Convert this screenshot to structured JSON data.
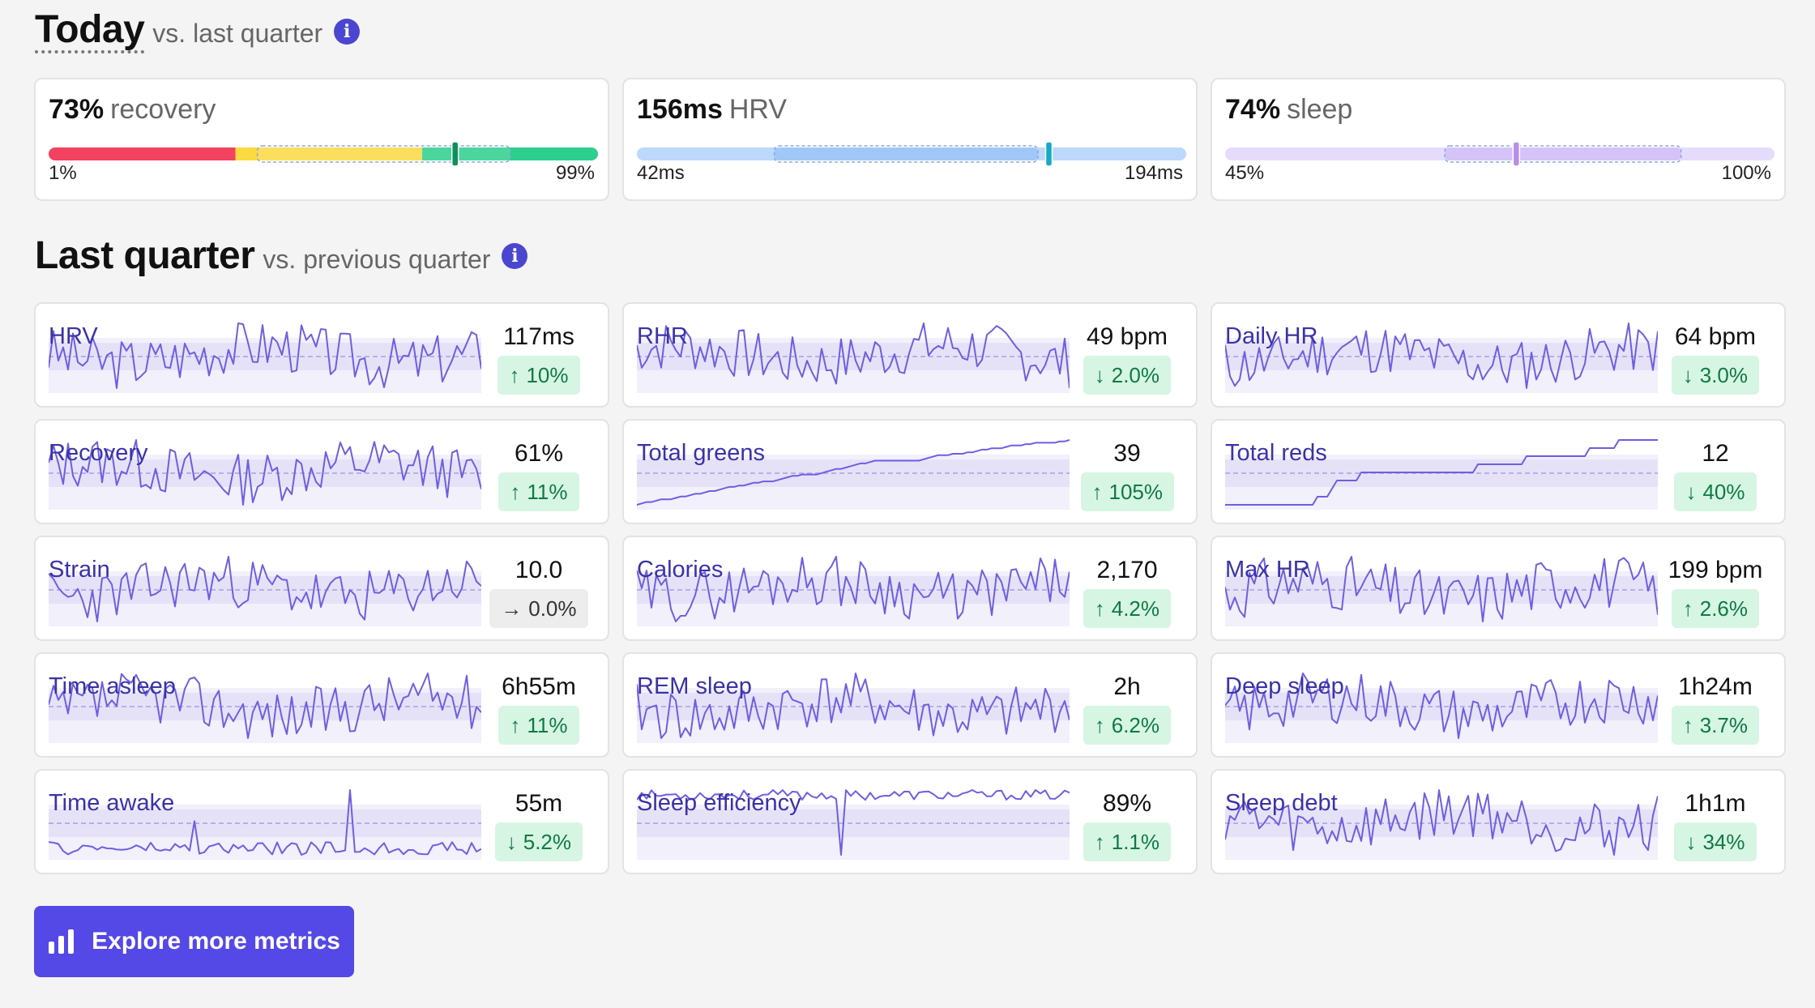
{
  "today": {
    "title": "Today",
    "subtitle": "vs. last quarter",
    "cards": [
      {
        "value": "73%",
        "unit": "recovery",
        "min": "1%",
        "max": "99%",
        "kind": "recovery",
        "marker": 0.74,
        "range": [
          0.38,
          0.84
        ]
      },
      {
        "value": "156ms",
        "unit": "HRV",
        "min": "42ms",
        "max": "194ms",
        "kind": "hrv",
        "marker": 0.75,
        "range": [
          0.25,
          0.73
        ],
        "color": "#bcd8fb",
        "rangeColor": "#8fbef6",
        "markerColor": "#15a9c7"
      },
      {
        "value": "74%",
        "unit": "sleep",
        "min": "45%",
        "max": "100%",
        "kind": "sleep",
        "marker": 0.53,
        "range": [
          0.4,
          0.83
        ],
        "color": "#e5dcfb",
        "rangeColor": "#cdb9f6",
        "markerColor": "#b68ee8"
      }
    ]
  },
  "quarter": {
    "title": "Last quarter",
    "subtitle": "vs. previous quarter",
    "metrics": [
      {
        "label": "HRV",
        "value": "117ms",
        "change": "10%",
        "dir": "up",
        "style": "noisy",
        "seed": 3
      },
      {
        "label": "RHR",
        "value": "49 bpm",
        "change": "2.0%",
        "dir": "down",
        "style": "noisy",
        "seed": 7
      },
      {
        "label": "Daily HR",
        "value": "64 bpm",
        "change": "3.0%",
        "dir": "down",
        "style": "noisy",
        "seed": 11
      },
      {
        "label": "Recovery",
        "value": "61%",
        "change": "11%",
        "dir": "up",
        "style": "noisy",
        "seed": 13
      },
      {
        "label": "Total greens",
        "value": "39",
        "change": "105%",
        "dir": "up",
        "style": "cumulative",
        "seed": 17
      },
      {
        "label": "Total reds",
        "value": "12",
        "change": "40%",
        "dir": "down",
        "style": "steps",
        "seed": 19
      },
      {
        "label": "Strain",
        "value": "10.0",
        "change": "0.0%",
        "dir": "flat",
        "style": "noisy",
        "seed": 23
      },
      {
        "label": "Calories",
        "value": "2,170",
        "change": "4.2%",
        "dir": "up",
        "style": "noisy",
        "seed": 29
      },
      {
        "label": "Max HR",
        "value": "199 bpm",
        "change": "2.6%",
        "dir": "up",
        "style": "noisy",
        "seed": 31
      },
      {
        "label": "Time asleep",
        "value": "6h55m",
        "change": "11%",
        "dir": "up",
        "style": "noisy",
        "seed": 37
      },
      {
        "label": "REM sleep",
        "value": "2h",
        "change": "6.2%",
        "dir": "up",
        "style": "noisy",
        "seed": 41
      },
      {
        "label": "Deep sleep",
        "value": "1h24m",
        "change": "3.7%",
        "dir": "up",
        "style": "noisy",
        "seed": 43
      },
      {
        "label": "Time awake",
        "value": "55m",
        "change": "5.2%",
        "dir": "down",
        "style": "spiky",
        "seed": 47
      },
      {
        "label": "Sleep efficiency",
        "value": "89%",
        "change": "1.1%",
        "dir": "up",
        "style": "high",
        "seed": 53
      },
      {
        "label": "Sleep debt",
        "value": "1h1m",
        "change": "34%",
        "dir": "down",
        "style": "noisy",
        "seed": 59
      }
    ]
  },
  "button": {
    "label": "Explore more metrics",
    "icon": "bar-chart-icon"
  },
  "colors": {
    "accent": "#5448e6",
    "spark": "#6d5fe0",
    "band": "#eceafb",
    "badge_bg": "#d7f5e3",
    "badge_fg": "#0f7a44"
  }
}
